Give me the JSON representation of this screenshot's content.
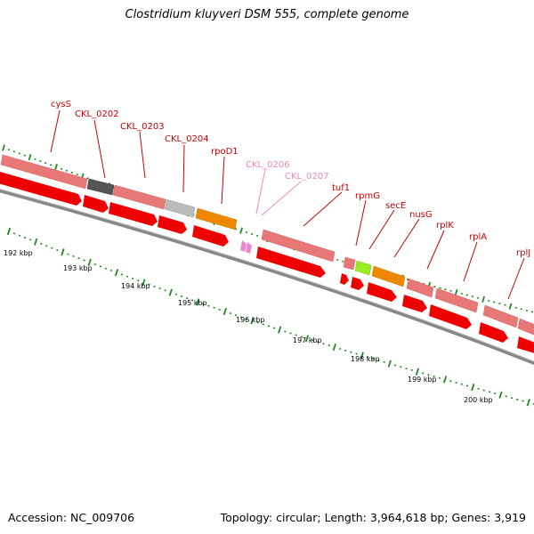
{
  "title": "Clostridium kluyveri DSM 555, complete genome",
  "footer": {
    "accession": "Accession: NC_009706",
    "summary": "Topology: circular; Length: 3,964,618 bp; Genes: 3,919"
  },
  "colors": {
    "cds": "#ee0000",
    "gene_rna": "#e87878",
    "gene_dark": "#555555",
    "gene_grey": "#bbbbbb",
    "gene_orange": "#ee8800",
    "gene_green": "#99ee22",
    "pink": "#ee88cc",
    "label_red": "#cc0000",
    "label_pink": "#ee88bb",
    "tick_green": "#228822"
  },
  "gene_labels": [
    {
      "name": "cysS",
      "faded": false
    },
    {
      "name": "CKL_0202",
      "faded": false
    },
    {
      "name": "CKL_0203",
      "faded": false
    },
    {
      "name": "CKL_0204",
      "faded": false
    },
    {
      "name": "rpoD1",
      "faded": false
    },
    {
      "name": "CKL_0206",
      "faded": true
    },
    {
      "name": "CKL_0207",
      "faded": true
    },
    {
      "name": "tuf1",
      "faded": false
    },
    {
      "name": "rpmG",
      "faded": false
    },
    {
      "name": "secE",
      "faded": false
    },
    {
      "name": "nusG",
      "faded": false
    },
    {
      "name": "rplK",
      "faded": false
    },
    {
      "name": "rplA",
      "faded": false
    },
    {
      "name": "rplJ",
      "faded": false
    }
  ],
  "scale_labels": [
    "192 kbp",
    "193 kbp",
    "194 kbp",
    "195 kbp",
    "196 kbp",
    "197 kbp",
    "198 kbp",
    "199 kbp",
    "200 kbp"
  ]
}
